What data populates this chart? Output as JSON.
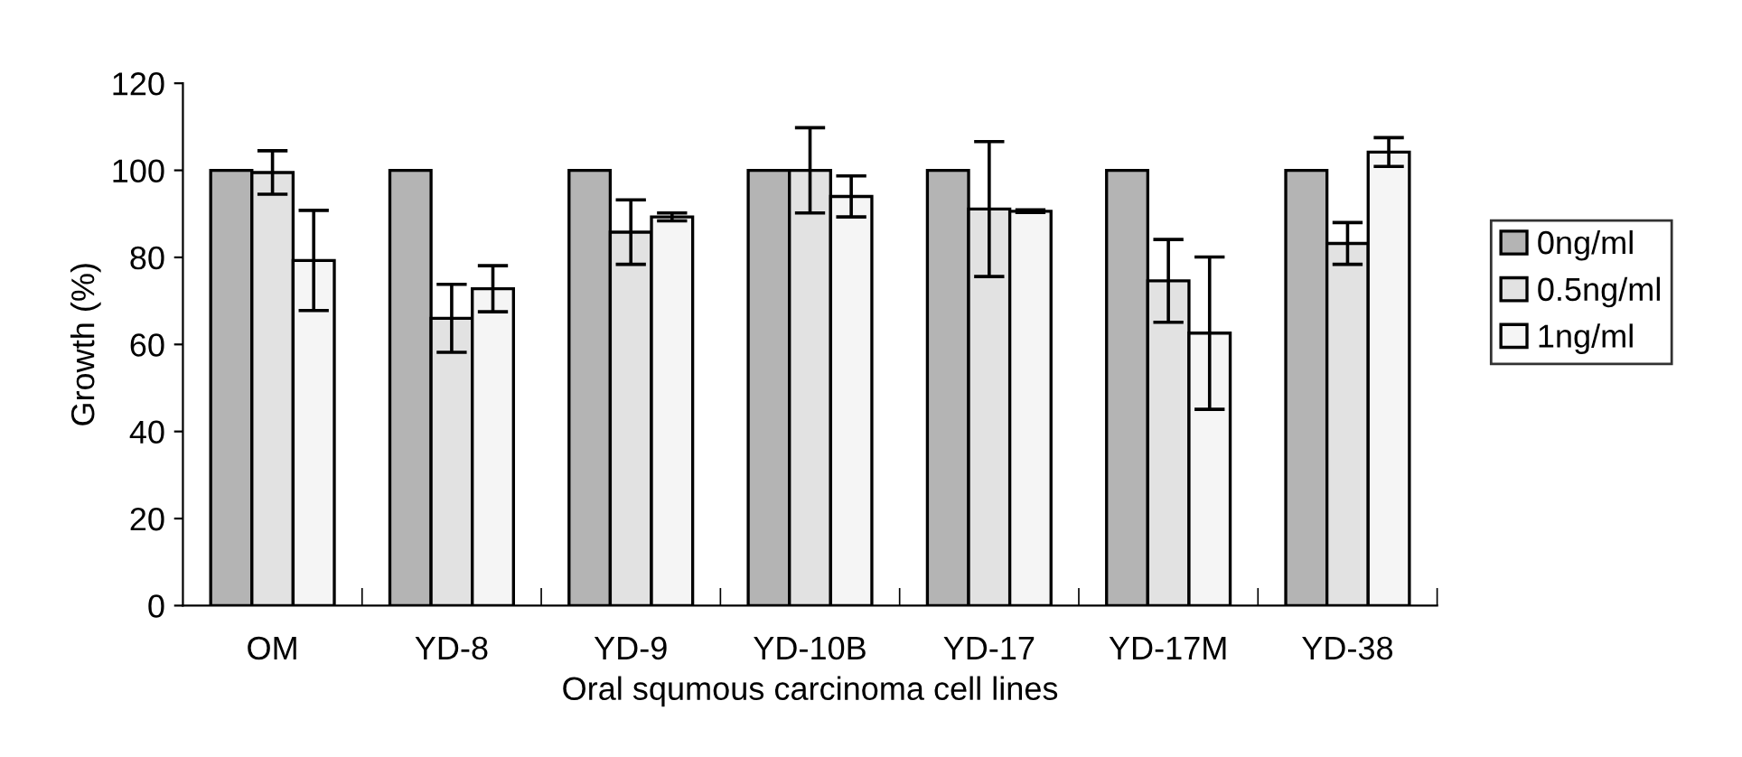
{
  "chart_data": {
    "type": "bar",
    "xlabel": "Oral squmous carcinoma cell lines",
    "ylabel": "Growth (%)",
    "categories": [
      "OM",
      "YD-8",
      "YD-9",
      "YD-10B",
      "YD-17",
      "YD-17M",
      "YD-38"
    ],
    "series": [
      {
        "name": "0ng/ml",
        "color": "#b4b4b4",
        "values": [
          100,
          100,
          100,
          100,
          100,
          100,
          100
        ]
      },
      {
        "name": "0.5ng/ml",
        "color": "#e2e2e2",
        "values": [
          99.5,
          66.0,
          85.8,
          100,
          91.1,
          74.6,
          83.2
        ],
        "errors": [
          5,
          7.8,
          7.4,
          9.8,
          15.5,
          9.5,
          4.8
        ]
      },
      {
        "name": "1ng/ml",
        "color": "#f5f5f5",
        "values": [
          79.3,
          72.8,
          89.3,
          94.0,
          90.6,
          62.6,
          104.2
        ],
        "errors": [
          11.5,
          5.3,
          0.9,
          4.7,
          0.3,
          17.5,
          3.3
        ]
      }
    ],
    "ylim": [
      0,
      120
    ],
    "yticks": [
      0,
      20,
      40,
      60,
      80,
      100,
      120
    ],
    "grid": false,
    "legend": "right"
  }
}
